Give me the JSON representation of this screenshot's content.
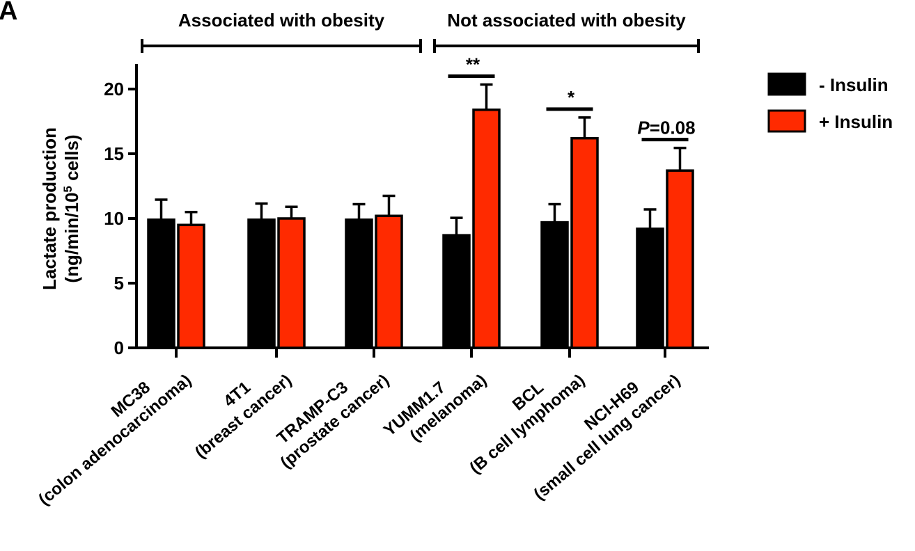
{
  "panel_label": "A",
  "chart_data": {
    "type": "bar",
    "ylabel_line1": "Lactate production",
    "ylabel_line2": "(ng/min/10",
    "ylabel_sup": "5",
    "ylabel_line2_end": " cells)",
    "ylim": [
      0,
      22
    ],
    "yticks": [
      0,
      5,
      10,
      15,
      20
    ],
    "groups": [
      {
        "label": "Associated with obesity",
        "from": 0,
        "to": 2
      },
      {
        "label": "Not associated with obesity",
        "from": 3,
        "to": 5
      }
    ],
    "categories": [
      {
        "line1": "MC38",
        "line2": "(colon adenocarcinoma)"
      },
      {
        "line1": "4T1",
        "line2": "(breast cancer)"
      },
      {
        "line1": "TRAMP-C3",
        "line2": "(prostate cancer)"
      },
      {
        "line1": "YUMM1.7",
        "line2": "(melanoma)"
      },
      {
        "line1": "BCL",
        "line2": "(B cell lymphoma)"
      },
      {
        "line1": "NCI-H69",
        "line2": "(small cell lung cancer)"
      }
    ],
    "series": [
      {
        "name": "- Insulin",
        "color": "#000000",
        "values": [
          9.9,
          9.9,
          9.9,
          8.7,
          9.7,
          9.2
        ],
        "errors": [
          1.55,
          1.25,
          1.2,
          1.35,
          1.4,
          1.5
        ]
      },
      {
        "name": "+ Insulin",
        "color": "#ff2a00",
        "values": [
          9.5,
          10.0,
          10.2,
          18.4,
          16.2,
          13.7
        ],
        "errors": [
          1.0,
          0.9,
          1.55,
          1.95,
          1.6,
          1.75
        ]
      }
    ],
    "significance": [
      {
        "category": 3,
        "label": "**",
        "italic_prefix": ""
      },
      {
        "category": 4,
        "label": "*",
        "italic_prefix": ""
      },
      {
        "category": 5,
        "label": "=0.08",
        "italic_prefix": "P"
      }
    ],
    "legend_position": "right",
    "grid": false
  }
}
